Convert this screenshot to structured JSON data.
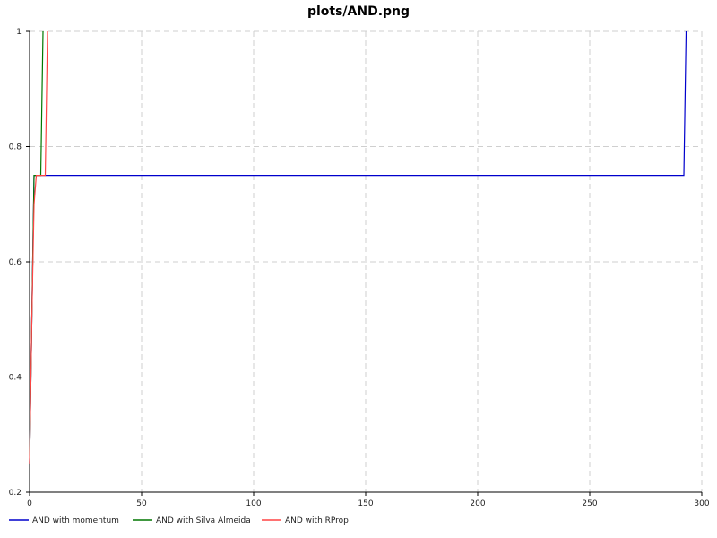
{
  "chart_data": {
    "type": "line",
    "title": "plots/AND.png",
    "xlabel": "",
    "ylabel": "",
    "xlim": [
      0,
      300
    ],
    "ylim": [
      0.2,
      1
    ],
    "xticks": [
      0,
      50,
      100,
      150,
      200,
      250,
      300
    ],
    "yticks": [
      0.2,
      0.4,
      0.6,
      0.8,
      1
    ],
    "xtick_labels": [
      "0",
      "50",
      "100",
      "150",
      "200",
      "250",
      "300"
    ],
    "ytick_labels": [
      "0.2",
      "0.4",
      "0.6",
      "0.8",
      "1"
    ],
    "grid": true,
    "legend": "bottom",
    "series": [
      {
        "name": "AND with momentum",
        "color": "#0000cc",
        "x": [
          0,
          1,
          2,
          3,
          292,
          293
        ],
        "y": [
          0.25,
          0.5,
          0.75,
          0.75,
          0.75,
          1
        ]
      },
      {
        "name": "AND with Silva Almeida",
        "color": "#007700",
        "x": [
          0,
          1,
          2,
          5,
          6
        ],
        "y": [
          0.25,
          0.5,
          0.75,
          0.75,
          1
        ]
      },
      {
        "name": "AND with RProp",
        "color": "#ff4444",
        "x": [
          0,
          1,
          2,
          3,
          7,
          8
        ],
        "y": [
          0.25,
          0.5,
          0.7,
          0.75,
          0.75,
          1
        ]
      }
    ]
  }
}
